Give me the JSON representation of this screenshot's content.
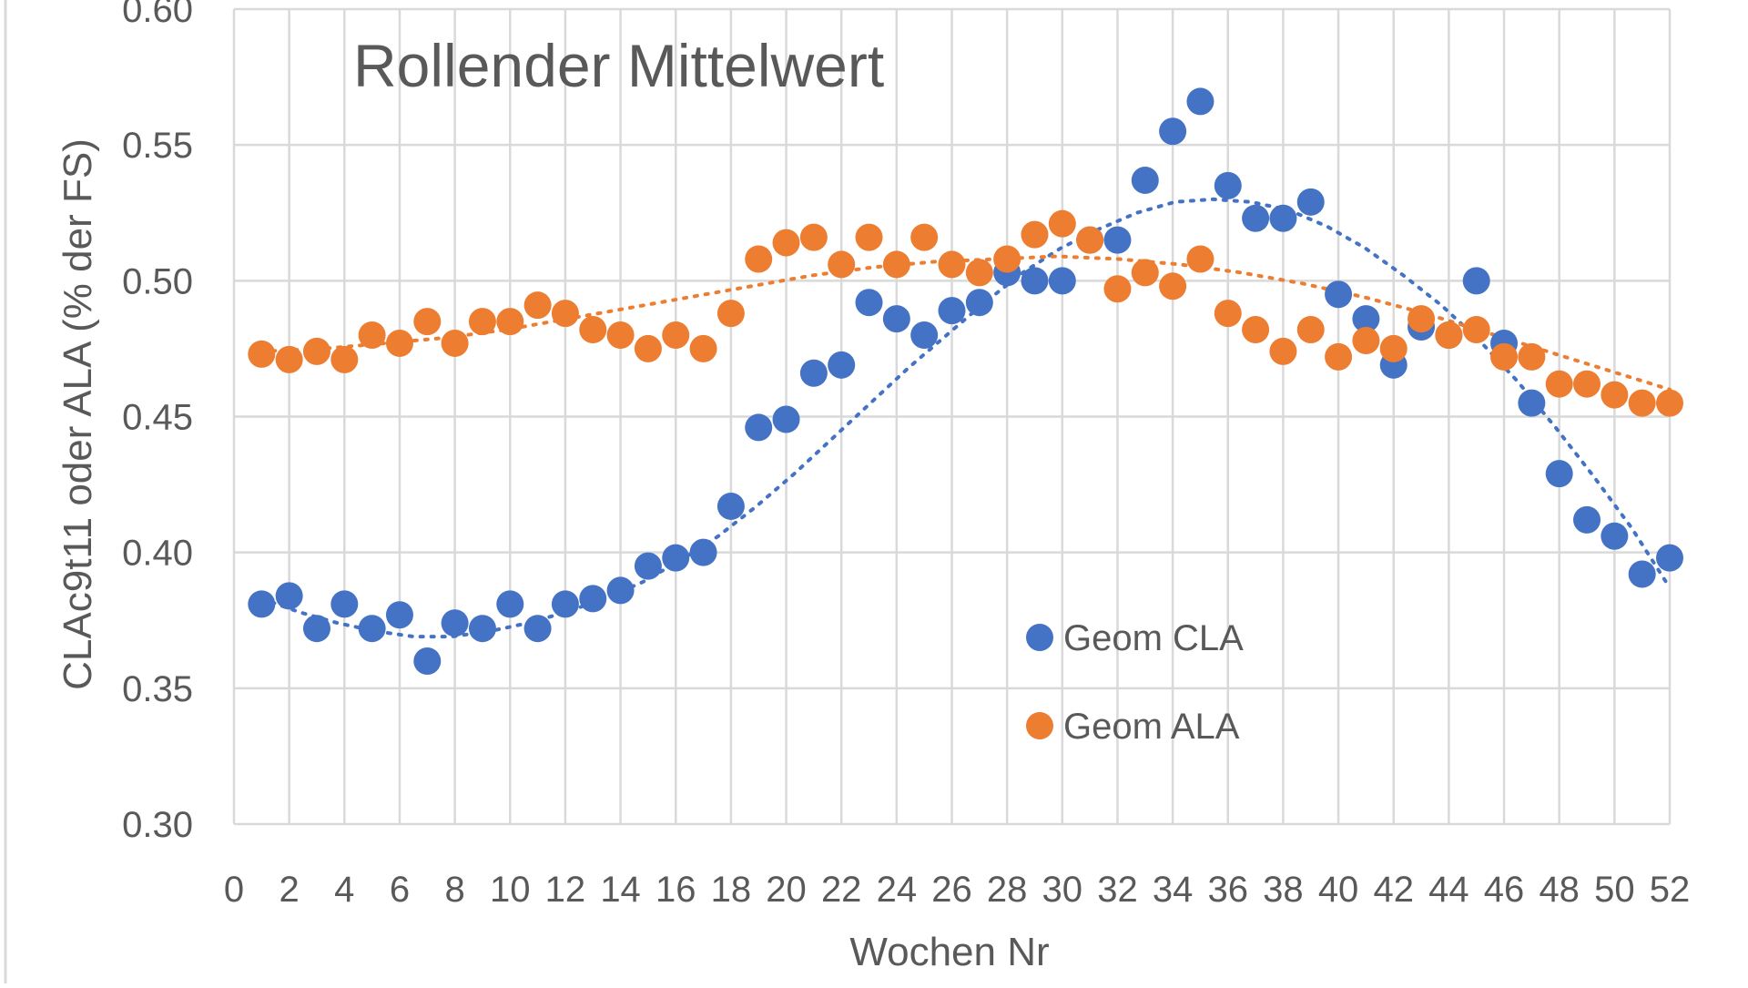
{
  "chart_data": {
    "type": "scatter",
    "title": "Rollender Mittelwert",
    "xlabel": "Wochen Nr",
    "ylabel": "CLAc9t11 oder ALA (% der FS)",
    "xlim": [
      0,
      52
    ],
    "ylim": [
      0.3,
      0.6
    ],
    "x_ticks": [
      0,
      2,
      4,
      6,
      8,
      10,
      12,
      14,
      16,
      18,
      20,
      22,
      24,
      26,
      28,
      30,
      32,
      34,
      36,
      38,
      40,
      42,
      44,
      46,
      48,
      50,
      52
    ],
    "y_ticks": [
      0.3,
      0.35,
      0.4,
      0.45,
      0.5,
      0.55,
      0.6
    ],
    "y_tick_labels": [
      "0.30",
      "0.35",
      "0.40",
      "0.45",
      "0.50",
      "0.55",
      "0.60"
    ],
    "grid": true,
    "legend_position": "lower-right inside",
    "x": [
      1,
      2,
      3,
      4,
      5,
      6,
      7,
      8,
      9,
      10,
      11,
      12,
      13,
      14,
      15,
      16,
      17,
      18,
      19,
      20,
      21,
      22,
      23,
      24,
      25,
      26,
      27,
      28,
      29,
      30,
      31,
      32,
      33,
      34,
      35,
      36,
      37,
      38,
      39,
      40,
      41,
      42,
      43,
      44,
      45,
      46,
      47,
      48,
      49,
      50,
      51,
      52
    ],
    "series": [
      {
        "name": "Geom CLA",
        "color": "#4472C4",
        "values": [
          0.381,
          0.384,
          0.372,
          0.381,
          0.372,
          0.377,
          0.36,
          0.374,
          0.372,
          0.381,
          0.372,
          0.381,
          0.383,
          0.386,
          0.395,
          0.398,
          0.4,
          0.417,
          0.446,
          0.449,
          0.466,
          0.469,
          0.492,
          0.486,
          0.48,
          0.489,
          0.492,
          0.503,
          0.5,
          0.5,
          0.515,
          0.515,
          0.537,
          0.555,
          0.566,
          0.535,
          0.523,
          0.523,
          0.529,
          0.495,
          0.486,
          0.469,
          0.483,
          0.48,
          0.5,
          0.477,
          0.455,
          0.429,
          0.412,
          0.406,
          0.392,
          0.398
        ],
        "trendline": [
          0.383,
          0.378,
          0.374,
          0.371,
          0.369,
          0.369,
          0.371,
          0.374,
          0.378,
          0.383,
          0.389,
          0.397,
          0.406,
          0.417,
          0.429,
          0.442,
          0.455,
          0.468,
          0.48,
          0.492,
          0.503,
          0.512,
          0.519,
          0.525,
          0.529,
          0.53,
          0.529,
          0.526,
          0.52,
          0.512,
          0.502,
          0.491,
          0.478,
          0.463,
          0.446,
          0.428,
          0.409,
          0.387
        ]
      },
      {
        "name": "Geom ALA",
        "color": "#ED7D31",
        "values": [
          0.473,
          0.471,
          0.474,
          0.471,
          0.48,
          0.477,
          0.485,
          0.477,
          0.485,
          0.485,
          0.491,
          0.488,
          0.482,
          0.48,
          0.475,
          0.48,
          0.475,
          0.488,
          0.508,
          0.514,
          0.516,
          0.506,
          0.516,
          0.506,
          0.516,
          0.506,
          0.503,
          0.508,
          0.517,
          0.521,
          0.515,
          0.497,
          0.503,
          0.498,
          0.508,
          0.488,
          0.482,
          0.474,
          0.482,
          0.472,
          0.478,
          0.475,
          0.486,
          0.48,
          0.482,
          0.472,
          0.472,
          0.462,
          0.462,
          0.458,
          0.455,
          0.455
        ],
        "trendline": [
          0.474,
          0.475,
          0.477,
          0.479,
          0.482,
          0.486,
          0.49,
          0.494,
          0.498,
          0.502,
          0.505,
          0.507,
          0.508,
          0.509,
          0.508,
          0.506,
          0.503,
          0.499,
          0.494,
          0.488,
          0.481,
          0.474,
          0.467,
          0.46
        ]
      }
    ]
  }
}
